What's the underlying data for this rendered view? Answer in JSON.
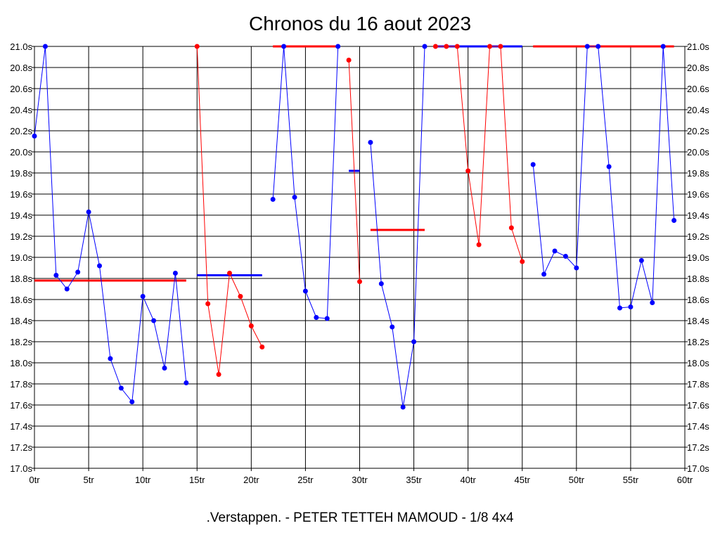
{
  "chart_data": {
    "type": "line",
    "title": "Chronos du 16 aout 2023",
    "footer": ".Verstappen. - PETER TETTEH MAMOUD - 1/8 4x4",
    "xlim": [
      0,
      60
    ],
    "ylim": [
      17.0,
      21.0
    ],
    "x_ticks": [
      "0tr",
      "5tr",
      "10tr",
      "15tr",
      "20tr",
      "25tr",
      "30tr",
      "35tr",
      "40tr",
      "45tr",
      "50tr",
      "55tr",
      "60tr"
    ],
    "y_ticks": [
      "17.0s",
      "17.2s",
      "17.4s",
      "17.6s",
      "17.8s",
      "18.0s",
      "18.2s",
      "18.4s",
      "18.6s",
      "18.8s",
      "19.0s",
      "19.2s",
      "19.4s",
      "19.6s",
      "19.8s",
      "20.0s",
      "20.2s",
      "20.4s",
      "20.6s",
      "20.8s",
      "21.0s"
    ],
    "y_ticks_both_sides": true,
    "grid": true,
    "colors": {
      "blue": "#0000ff",
      "red": "#ff0000",
      "grid": "#000000"
    },
    "series": [
      {
        "color": "blue",
        "points": [
          [
            0,
            20.15
          ],
          [
            1,
            21.0
          ],
          [
            2,
            18.83
          ],
          [
            3,
            18.7
          ],
          [
            4,
            18.86
          ],
          [
            5,
            19.43
          ],
          [
            6,
            18.92
          ],
          [
            7,
            18.04
          ],
          [
            8,
            17.76
          ],
          [
            9,
            17.63
          ],
          [
            10,
            18.63
          ],
          [
            11,
            18.4
          ],
          [
            12,
            17.95
          ],
          [
            13,
            18.85
          ],
          [
            14,
            17.81
          ]
        ]
      },
      {
        "color": "red",
        "points": [
          [
            15,
            21.0
          ],
          [
            16,
            18.56
          ],
          [
            17,
            17.89
          ],
          [
            18,
            18.85
          ],
          [
            19,
            18.63
          ],
          [
            20,
            18.35
          ],
          [
            21,
            18.15
          ]
        ]
      },
      {
        "color": "blue",
        "points": [
          [
            22,
            19.55
          ],
          [
            23,
            21.0
          ],
          [
            24,
            19.57
          ],
          [
            25,
            18.68
          ],
          [
            26,
            18.43
          ],
          [
            27,
            18.42
          ],
          [
            28,
            21.0
          ]
        ]
      },
      {
        "color": "red",
        "points": [
          [
            29,
            20.87
          ],
          [
            30,
            18.77
          ]
        ]
      },
      {
        "color": "blue",
        "points": [
          [
            31,
            20.09
          ],
          [
            32,
            18.75
          ],
          [
            33,
            18.34
          ],
          [
            34,
            17.58
          ],
          [
            35,
            18.2
          ],
          [
            36,
            21.0
          ]
        ]
      },
      {
        "color": "red",
        "points": [
          [
            37,
            21.0
          ],
          [
            38,
            21.0
          ],
          [
            39,
            21.0
          ],
          [
            40,
            19.82
          ],
          [
            41,
            19.12
          ],
          [
            42,
            21.0
          ],
          [
            43,
            21.0
          ],
          [
            44,
            19.28
          ],
          [
            45,
            18.96
          ]
        ]
      },
      {
        "color": "blue",
        "points": [
          [
            46,
            19.88
          ],
          [
            47,
            18.84
          ],
          [
            48,
            19.06
          ],
          [
            49,
            19.01
          ],
          [
            50,
            18.9
          ],
          [
            51,
            21.0
          ],
          [
            52,
            21.0
          ],
          [
            53,
            19.86
          ],
          [
            54,
            18.52
          ],
          [
            55,
            18.53
          ],
          [
            56,
            18.97
          ],
          [
            57,
            18.57
          ],
          [
            58,
            21.0
          ],
          [
            59,
            19.35
          ]
        ]
      }
    ],
    "averages": [
      {
        "color": "red",
        "x": [
          0,
          14
        ],
        "y": 18.78
      },
      {
        "color": "blue",
        "x": [
          15,
          21
        ],
        "y": 18.83
      },
      {
        "color": "red",
        "x": [
          22,
          28
        ],
        "y": 21.0
      },
      {
        "color": "blue",
        "x": [
          29,
          30
        ],
        "y": 19.82
      },
      {
        "color": "red",
        "x": [
          31,
          36
        ],
        "y": 19.26
      },
      {
        "color": "blue",
        "x": [
          37,
          45
        ],
        "y": 21.0
      },
      {
        "color": "red",
        "x": [
          46,
          59
        ],
        "y": 21.0
      }
    ]
  }
}
